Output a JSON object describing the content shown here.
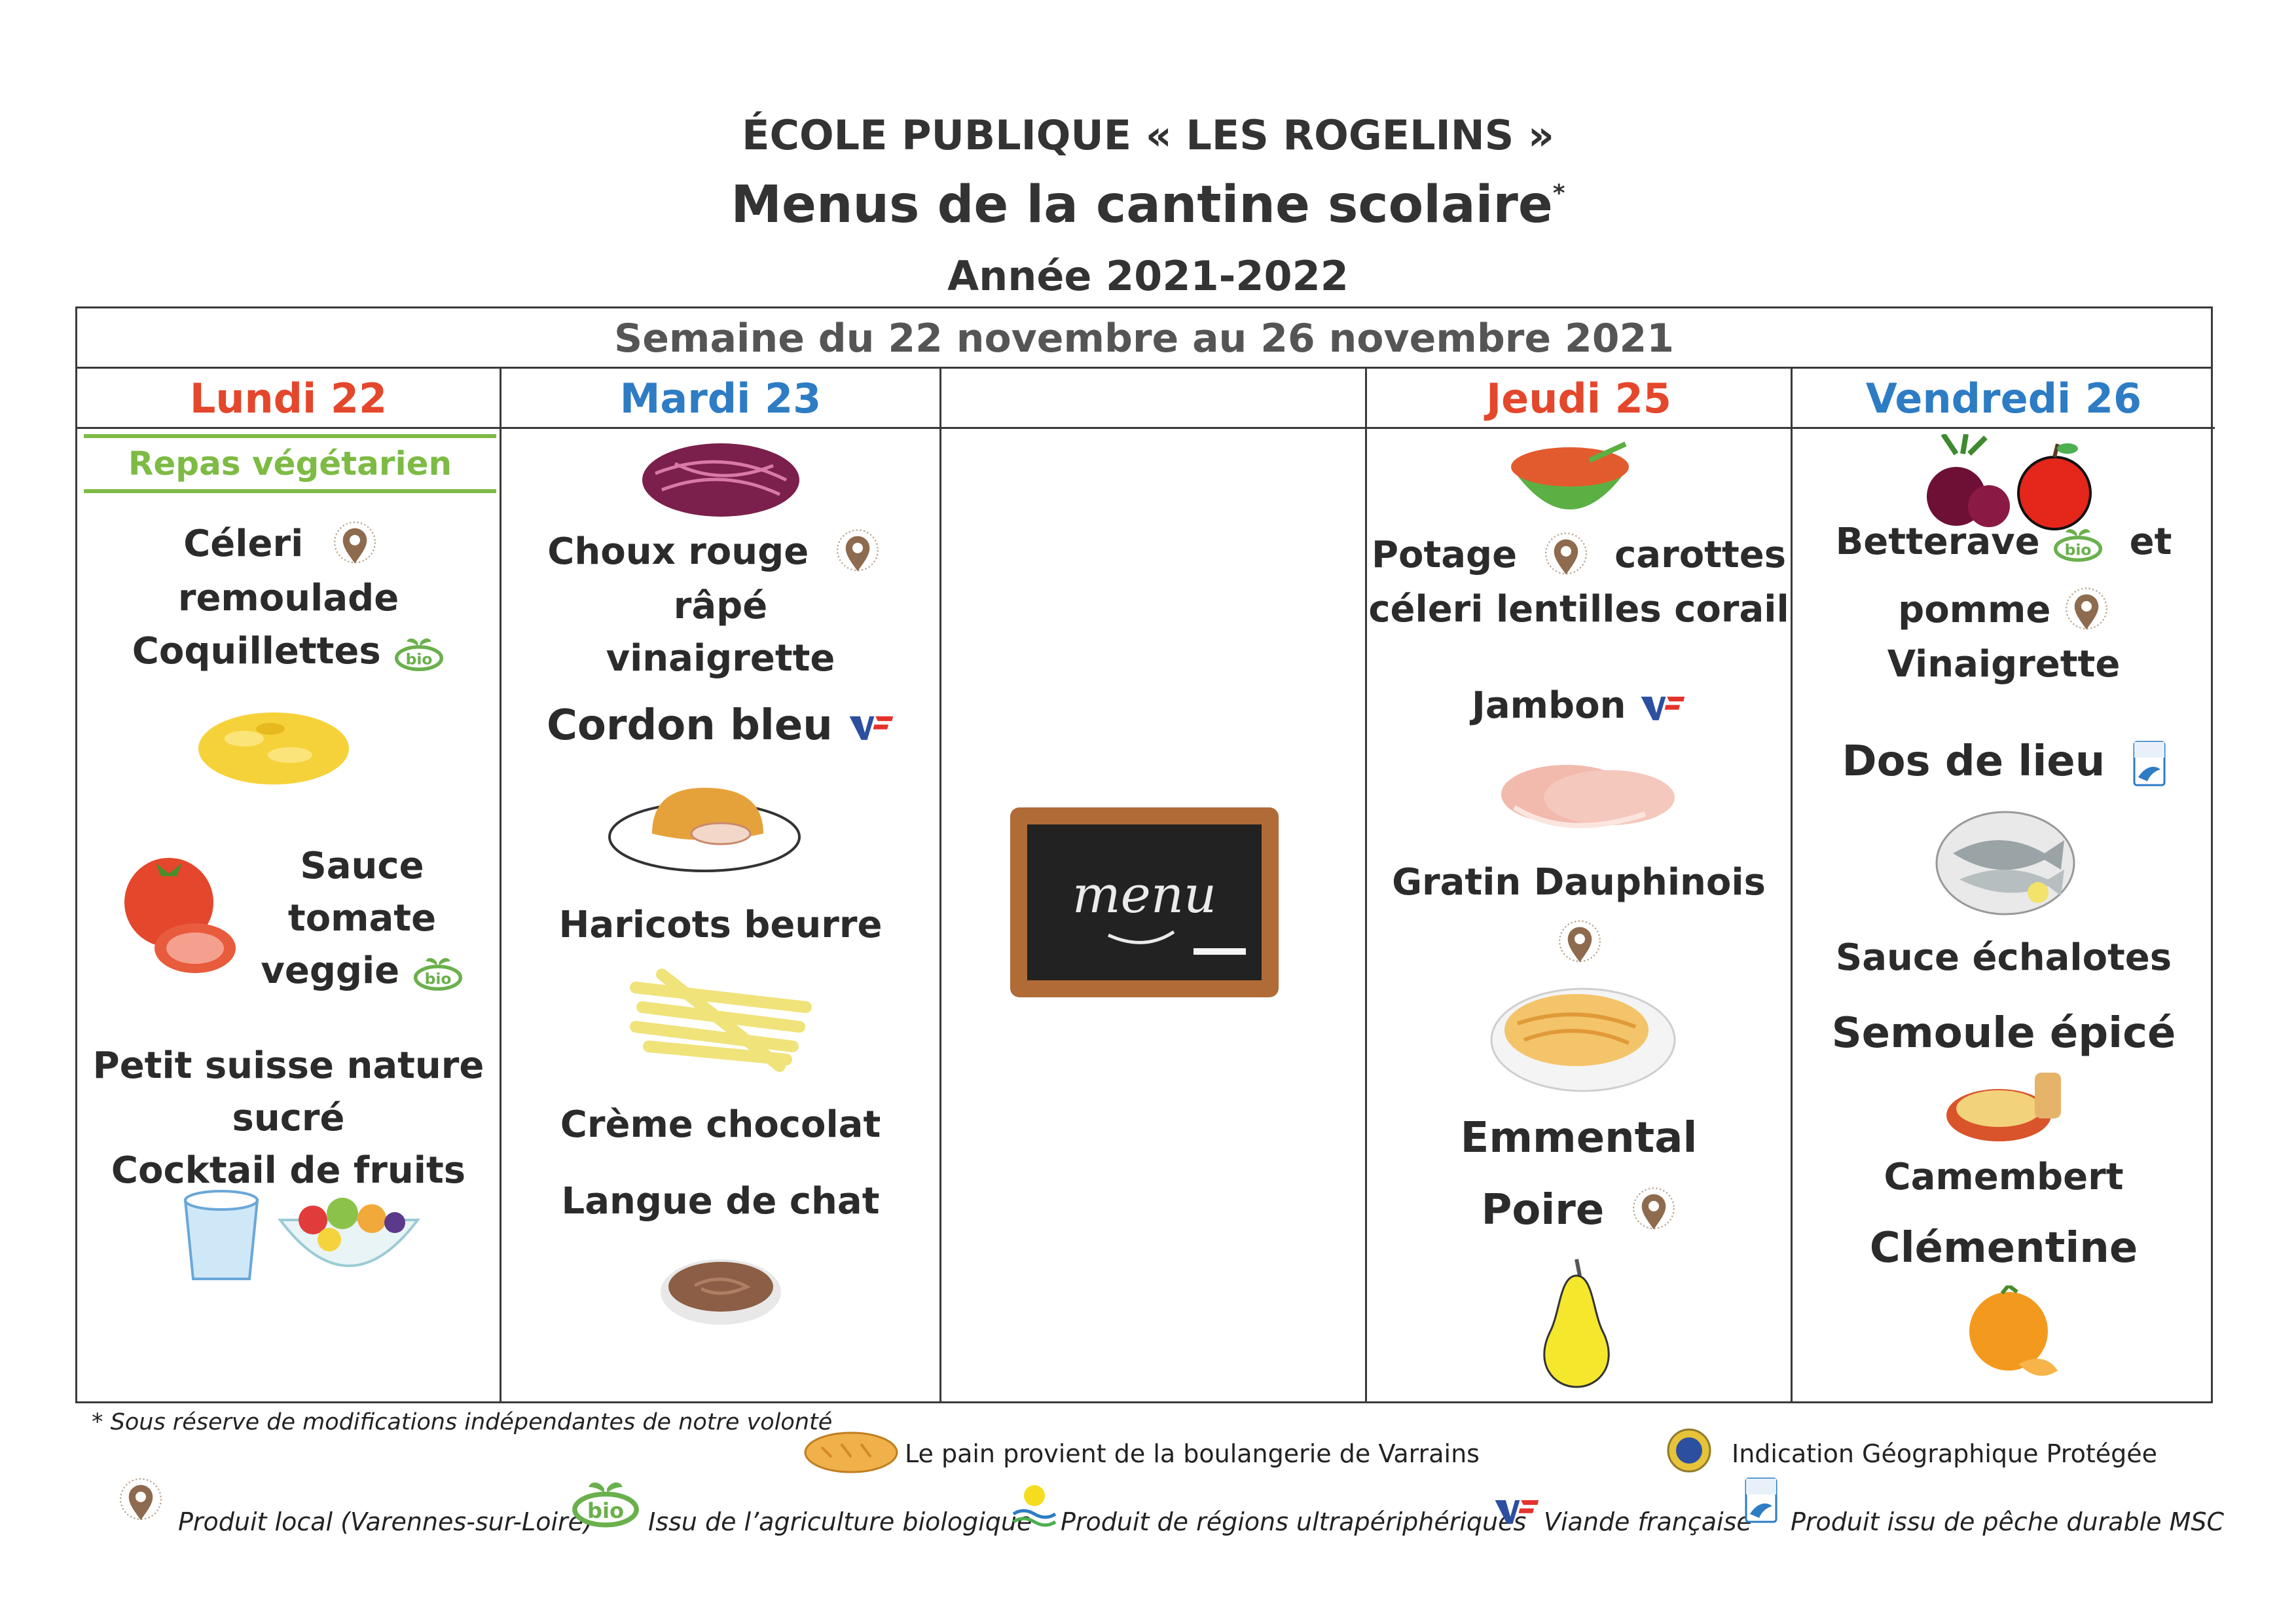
{
  "header": {
    "school": "ÉCOLE PUBLIQUE « LES ROGELINS »",
    "title": "Menus de la cantine scolaire",
    "title_mark": "*",
    "year": "Année 2021-2022"
  },
  "week_label": "Semaine du 22 novembre au 26 novembre 2021",
  "days": {
    "mon": {
      "label": "Lundi 22",
      "tag": "Repas végétarien",
      "i1a": "Céleri",
      "i1b": "remoulade",
      "i2": "Coquillettes",
      "i3a": "Sauce",
      "i3b": "tomate",
      "i3c": "veggie",
      "i4a": "Petit suisse nature",
      "i4b": "sucré",
      "i4c": "Cocktail de fruits"
    },
    "tue": {
      "label": "Mardi 23",
      "i1a": "Choux rouge",
      "i1b": "râpé",
      "i1c": "vinaigrette",
      "i2": "Cordon bleu",
      "i3": "Haricots beurre",
      "i4": "Crème chocolat",
      "i5": "Langue de chat"
    },
    "wed": {
      "board_text": "menu"
    },
    "thu": {
      "label": "Jeudi 25",
      "i1a": "Potage",
      "i1b": "carottes",
      "i1c": "céleri lentilles corail",
      "i2": "Jambon",
      "i3": "Gratin Dauphinois",
      "i4": "Emmental",
      "i5": "Poire"
    },
    "fri": {
      "label": "Vendredi 26",
      "i1a": "Betterave",
      "i1b": "et",
      "i1c": "pomme",
      "i1d": "Vinaigrette",
      "i2": "Dos de lieu",
      "i3": "Sauce échalotes",
      "i4": "Semoule épicé",
      "i5": "Camembert",
      "i6": "Clémentine"
    }
  },
  "footer": {
    "note": "* Sous réserve de modifications indépendantes de notre volonté",
    "bread": "Le pain provient de la boulangerie de Varrains",
    "igp": "Indication Géographique Protégée",
    "local": "Produit local (Varennes-sur-Loire)",
    "bio": "Issu de l’agriculture biologique",
    "rup": "Produit de régions ultrapériphériques",
    "vf": "Viande française",
    "msc": "Produit issu de pêche durable MSC"
  },
  "icons": {
    "local": "location-pin-icon",
    "bio": "bio-label-icon",
    "vf": "viande-francaise-icon",
    "msc": "msc-fish-icon",
    "igp": "igp-seal-icon",
    "rup": "ultraperipheral-region-icon"
  },
  "colors": {
    "monday_thursday": "#e4472b",
    "tuesday_friday": "#2d7cc4",
    "vegetarian": "#7dbb45"
  }
}
